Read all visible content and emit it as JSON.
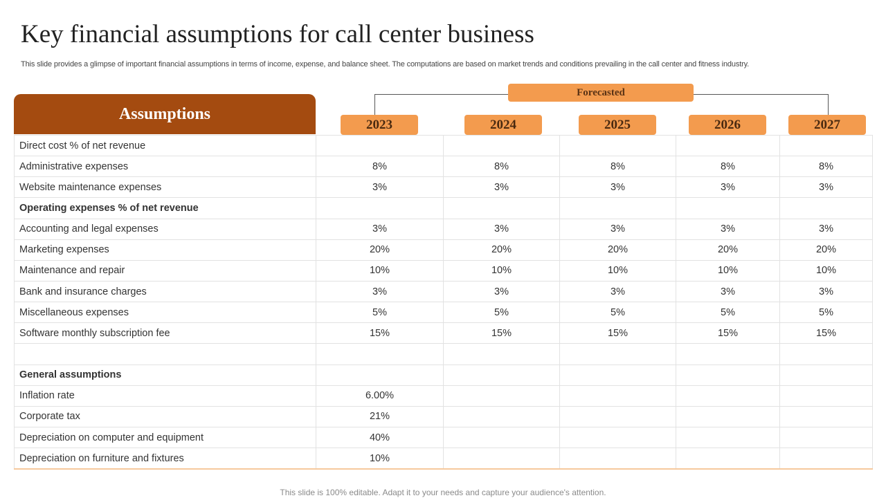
{
  "title": "Key financial assumptions for call center business",
  "subtitle": "This slide provides a glimpse of important financial assumptions in terms of income, expense, and balance sheet. The computations are based on market trends and conditions prevailing in the call center and fitness industry.",
  "assumptions_header": "Assumptions",
  "forecast_label": "Forecasted",
  "years": [
    "2023",
    "2024",
    "2025",
    "2026",
    "2027"
  ],
  "rows": [
    {
      "label": "Direct cost % of net revenue",
      "bold": false,
      "values": [
        "",
        "",
        "",
        "",
        ""
      ]
    },
    {
      "label": "Administrative expenses",
      "bold": false,
      "values": [
        "8%",
        "8%",
        "8%",
        "8%",
        "8%"
      ]
    },
    {
      "label": "Website maintenance expenses",
      "bold": false,
      "values": [
        "3%",
        "3%",
        "3%",
        "3%",
        "3%"
      ]
    },
    {
      "label": "Operating expenses % of net revenue",
      "bold": true,
      "values": [
        "",
        "",
        "",
        "",
        ""
      ]
    },
    {
      "label": "Accounting and legal expenses",
      "bold": false,
      "values": [
        "3%",
        "3%",
        "3%",
        "3%",
        "3%"
      ]
    },
    {
      "label": "Marketing expenses",
      "bold": false,
      "values": [
        "20%",
        "20%",
        "20%",
        "20%",
        "20%"
      ]
    },
    {
      "label": "Maintenance and repair",
      "bold": false,
      "values": [
        "10%",
        "10%",
        "10%",
        "10%",
        "10%"
      ]
    },
    {
      "label": "Bank and insurance charges",
      "bold": false,
      "values": [
        "3%",
        "3%",
        "3%",
        "3%",
        "3%"
      ]
    },
    {
      "label": "Miscellaneous expenses",
      "bold": false,
      "values": [
        "5%",
        "5%",
        "5%",
        "5%",
        "5%"
      ]
    },
    {
      "label": "Software monthly subscription fee",
      "bold": false,
      "values": [
        "15%",
        "15%",
        "15%",
        "15%",
        "15%"
      ]
    },
    {
      "label": "",
      "bold": false,
      "values": [
        "",
        "",
        "",
        "",
        ""
      ]
    },
    {
      "label": "General assumptions",
      "bold": true,
      "values": [
        "",
        "",
        "",
        "",
        ""
      ]
    },
    {
      "label": "Inflation rate",
      "bold": false,
      "values": [
        "6.00%",
        "",
        "",
        "",
        ""
      ]
    },
    {
      "label": "Corporate tax",
      "bold": false,
      "values": [
        "21%",
        "",
        "",
        "",
        ""
      ]
    },
    {
      "label": "Depreciation on computer and equipment",
      "bold": false,
      "values": [
        "40%",
        "",
        "",
        "",
        ""
      ]
    },
    {
      "label": "Depreciation on furniture and fixtures",
      "bold": false,
      "values": [
        "10%",
        "",
        "",
        "",
        ""
      ]
    }
  ],
  "footer": "This slide is 100% editable. Adapt it to your needs and capture your audience's attention.",
  "colors": {
    "header_brown": "#a44b10",
    "accent_orange": "#f39b4e",
    "grid_line": "#e2e2e2"
  }
}
